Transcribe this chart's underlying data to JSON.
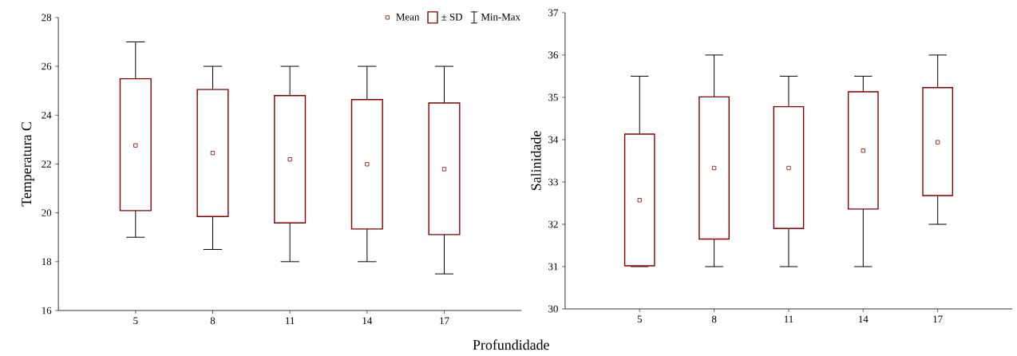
{
  "chart_data": [
    {
      "type": "box",
      "ylabel": "Temperatura  C",
      "xlabel": "Profundidade",
      "categories": [
        "5",
        "8",
        "11",
        "14",
        "17"
      ],
      "ylim": [
        16,
        28
      ],
      "yticks": [
        16,
        18,
        20,
        22,
        24,
        26,
        28
      ],
      "grid": false,
      "legend": "top right",
      "annotations": [
        "Mean",
        "Min-Max"
      ],
      "series": [
        {
          "name": "± SD",
          "color": "#800000",
          "boxes": [
            {
              "low": 19,
              "q1": 20.09,
              "q3": 25.49,
              "high": 27,
              "mean": 22.76
            },
            {
              "low": 18.5,
              "q1": 19.85,
              "q3": 25.05,
              "high": 26,
              "mean": 22.45
            },
            {
              "low": 18,
              "q1": 19.59,
              "q3": 24.8,
              "high": 26,
              "mean": 22.19
            },
            {
              "low": 18,
              "q1": 19.34,
              "q3": 24.64,
              "high": 26,
              "mean": 21.99
            },
            {
              "low": 17.5,
              "q1": 19.11,
              "q3": 24.5,
              "high": 26,
              "mean": 21.79
            }
          ]
        }
      ]
    },
    {
      "type": "box",
      "ylabel": "Salinidade",
      "categories": [
        "5",
        "8",
        "11",
        "14",
        "17"
      ],
      "ylim": [
        30,
        37
      ],
      "yticks": [
        30,
        31,
        32,
        33,
        34,
        35,
        36,
        37
      ],
      "grid": false,
      "series": [
        {
          "color": "#800000",
          "boxes": [
            {
              "low": 31,
              "q1": 31.02,
              "q3": 34.13,
              "high": 35.5,
              "mean": 32.57
            },
            {
              "low": 31,
              "q1": 31.65,
              "q3": 35.01,
              "high": 36,
              "mean": 33.33
            },
            {
              "low": 31,
              "q1": 31.9,
              "q3": 34.78,
              "high": 35.5,
              "mean": 33.33
            },
            {
              "low": 31,
              "q1": 32.36,
              "q3": 35.13,
              "high": 35.5,
              "mean": 33.74
            },
            {
              "low": 32,
              "q1": 32.68,
              "q3": 35.23,
              "high": 36,
              "mean": 33.94
            }
          ]
        }
      ]
    }
  ]
}
